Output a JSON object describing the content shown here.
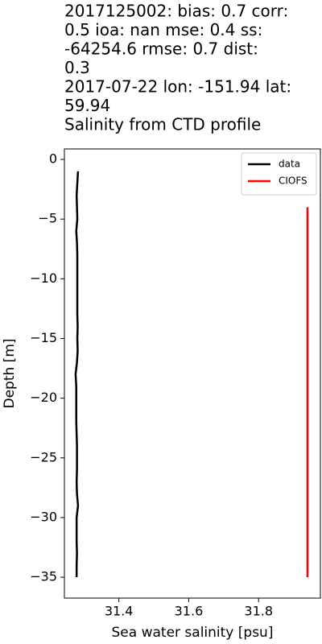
{
  "chart_data": {
    "type": "line",
    "title": [
      "2017125002: bias: 0.7  corr:",
      "0.5  ioa: nan  mse: 0.4  ss:",
      "-64254.6  rmse: 0.7  dist:",
      "0.3",
      "2017-07-22 lon: -151.94 lat:",
      "59.94",
      "Salinity from CTD profile"
    ],
    "xlabel": "Sea water salinity [psu]",
    "ylabel": "Depth [m]",
    "xlim": [
      31.244,
      31.977
    ],
    "ylim": [
      -36.75,
      0.88
    ],
    "xticks": [
      31.4,
      31.6,
      31.8
    ],
    "yticks": [
      0,
      {
        "value": -5,
        "label": "−5"
      },
      {
        "value": -10,
        "label": "−10"
      },
      {
        "value": -15,
        "label": "−15"
      },
      {
        "value": -20,
        "label": "−20"
      },
      {
        "value": -25,
        "label": "−25"
      },
      {
        "value": -30,
        "label": "−30"
      },
      {
        "value": -35,
        "label": "−35"
      }
    ],
    "legend": "upper right",
    "series": [
      {
        "name": "data",
        "color": "#000000",
        "x": [
          31.283,
          31.281,
          31.279,
          31.28,
          31.281,
          31.278,
          31.28,
          31.281,
          31.281,
          31.281,
          31.281,
          31.281,
          31.281,
          31.282,
          31.281,
          31.282,
          31.28,
          31.276,
          31.278,
          31.278,
          31.278,
          31.278,
          31.279,
          31.28,
          31.28,
          31.28,
          31.279,
          31.28,
          31.283,
          31.279,
          31.279,
          31.279,
          31.28,
          31.279,
          31.279
        ],
        "y": [
          -1,
          -2,
          -3,
          -4,
          -5,
          -6,
          -7,
          -8,
          -9,
          -10,
          -11,
          -12,
          -13,
          -14,
          -15,
          -16,
          -17,
          -18,
          -19,
          -20,
          -21,
          -22,
          -23,
          -24,
          -25,
          -26,
          -27,
          -28,
          -29,
          -30,
          -31,
          -32,
          -33,
          -34,
          -35
        ]
      },
      {
        "name": "CIOFS",
        "color": "#ff0000",
        "x": [
          31.94,
          31.94
        ],
        "y": [
          -4,
          -35
        ]
      }
    ]
  }
}
